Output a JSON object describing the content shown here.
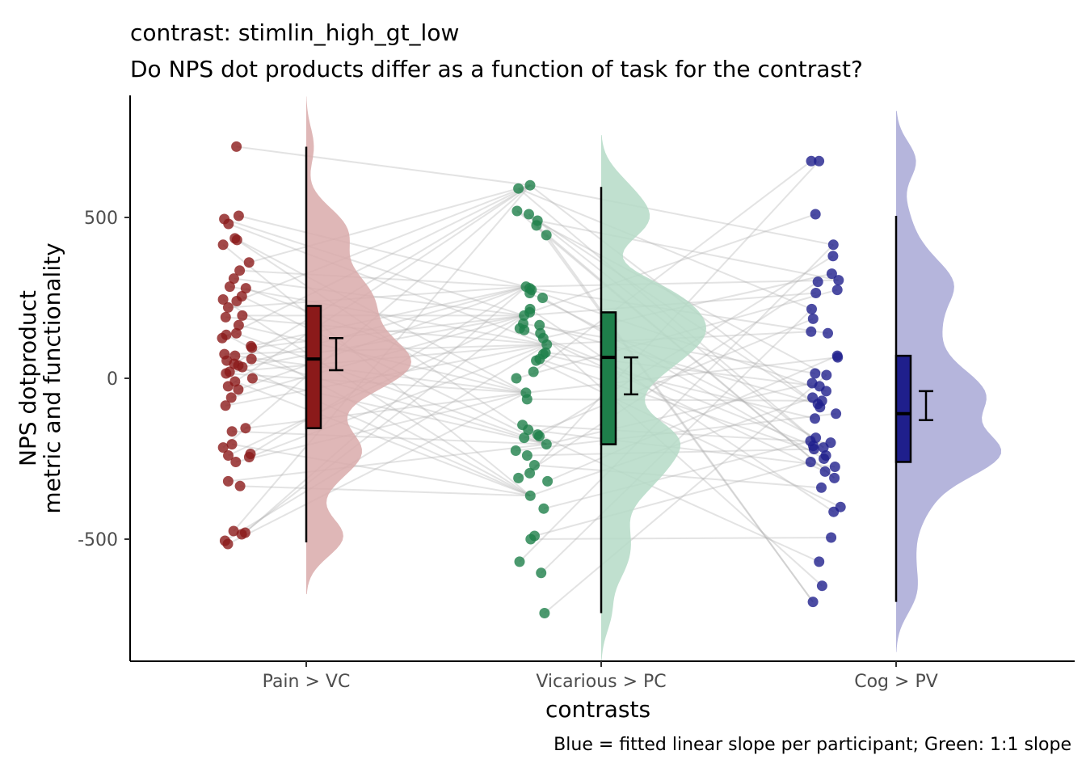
{
  "chart_data": {
    "type": "raincloud",
    "title": "contrast:  stimlin_high_gt_low",
    "subtitle": "Do NPS dot products differ as a function of task for the contrast?",
    "xlabel": "contrasts",
    "ylabel_line1": "NPS dotproduct",
    "ylabel_line2": "metric and functionality",
    "caption": "Blue = fitted linear slope per participant; Green: 1:1 slope",
    "categories": [
      "Pain > VC",
      "Vicarious > PC",
      "Cog > PV"
    ],
    "y_ticks": [
      -500,
      0,
      500
    ],
    "y_tick_labels": [
      "-500",
      "0",
      "500"
    ],
    "ylim": [
      -880,
      880
    ],
    "grid": false,
    "series": [
      {
        "category": "Pain > VC",
        "color": "#8b1a1a",
        "fill": "#d9aaaa",
        "box": {
          "min": -510,
          "q1": -155,
          "median": 60,
          "q3": 225,
          "max": 720
        },
        "mean_ci": {
          "mean": 75,
          "lower": 25,
          "upper": 125
        },
        "points": [
          720,
          505,
          495,
          480,
          435,
          430,
          415,
          360,
          335,
          310,
          285,
          280,
          255,
          245,
          240,
          220,
          195,
          190,
          165,
          140,
          135,
          125,
          100,
          95,
          75,
          70,
          60,
          55,
          45,
          40,
          35,
          20,
          15,
          0,
          -10,
          -25,
          -35,
          -60,
          -85,
          -155,
          -165,
          -205,
          -215,
          -235,
          -240,
          -245,
          -260,
          -320,
          -335,
          -475,
          -480,
          -485,
          -505,
          -515
        ]
      },
      {
        "category": "Vicarious > PC",
        "color": "#1e7f4a",
        "fill": "#b5dbc7",
        "box": {
          "min": -730,
          "q1": -205,
          "median": 65,
          "q3": 205,
          "max": 595
        },
        "mean_ci": {
          "mean": 10,
          "lower": -50,
          "upper": 65
        },
        "points": [
          600,
          590,
          520,
          510,
          490,
          475,
          445,
          285,
          280,
          275,
          265,
          250,
          215,
          205,
          195,
          170,
          165,
          155,
          150,
          140,
          125,
          105,
          80,
          75,
          60,
          55,
          20,
          0,
          -45,
          -65,
          -145,
          -160,
          -175,
          -180,
          -185,
          -205,
          -225,
          -240,
          -270,
          -295,
          -310,
          -320,
          -365,
          -405,
          -490,
          -500,
          -570,
          -605,
          -730
        ]
      },
      {
        "category": "Cog > PV",
        "color": "#1f1f8c",
        "fill": "#a8a8d6",
        "box": {
          "min": -695,
          "q1": -260,
          "median": -110,
          "q3": 70,
          "max": 505
        },
        "mean_ci": {
          "mean": -85,
          "lower": -130,
          "upper": -40
        },
        "points": [
          675,
          675,
          510,
          415,
          380,
          325,
          305,
          300,
          275,
          265,
          215,
          185,
          145,
          140,
          70,
          65,
          15,
          10,
          -15,
          -25,
          -40,
          -60,
          -70,
          -80,
          -90,
          -110,
          -125,
          -185,
          -195,
          -200,
          -210,
          -215,
          -220,
          -240,
          -250,
          -260,
          -275,
          -290,
          -310,
          -340,
          -400,
          -415,
          -495,
          -570,
          -645,
          -695
        ]
      }
    ]
  }
}
